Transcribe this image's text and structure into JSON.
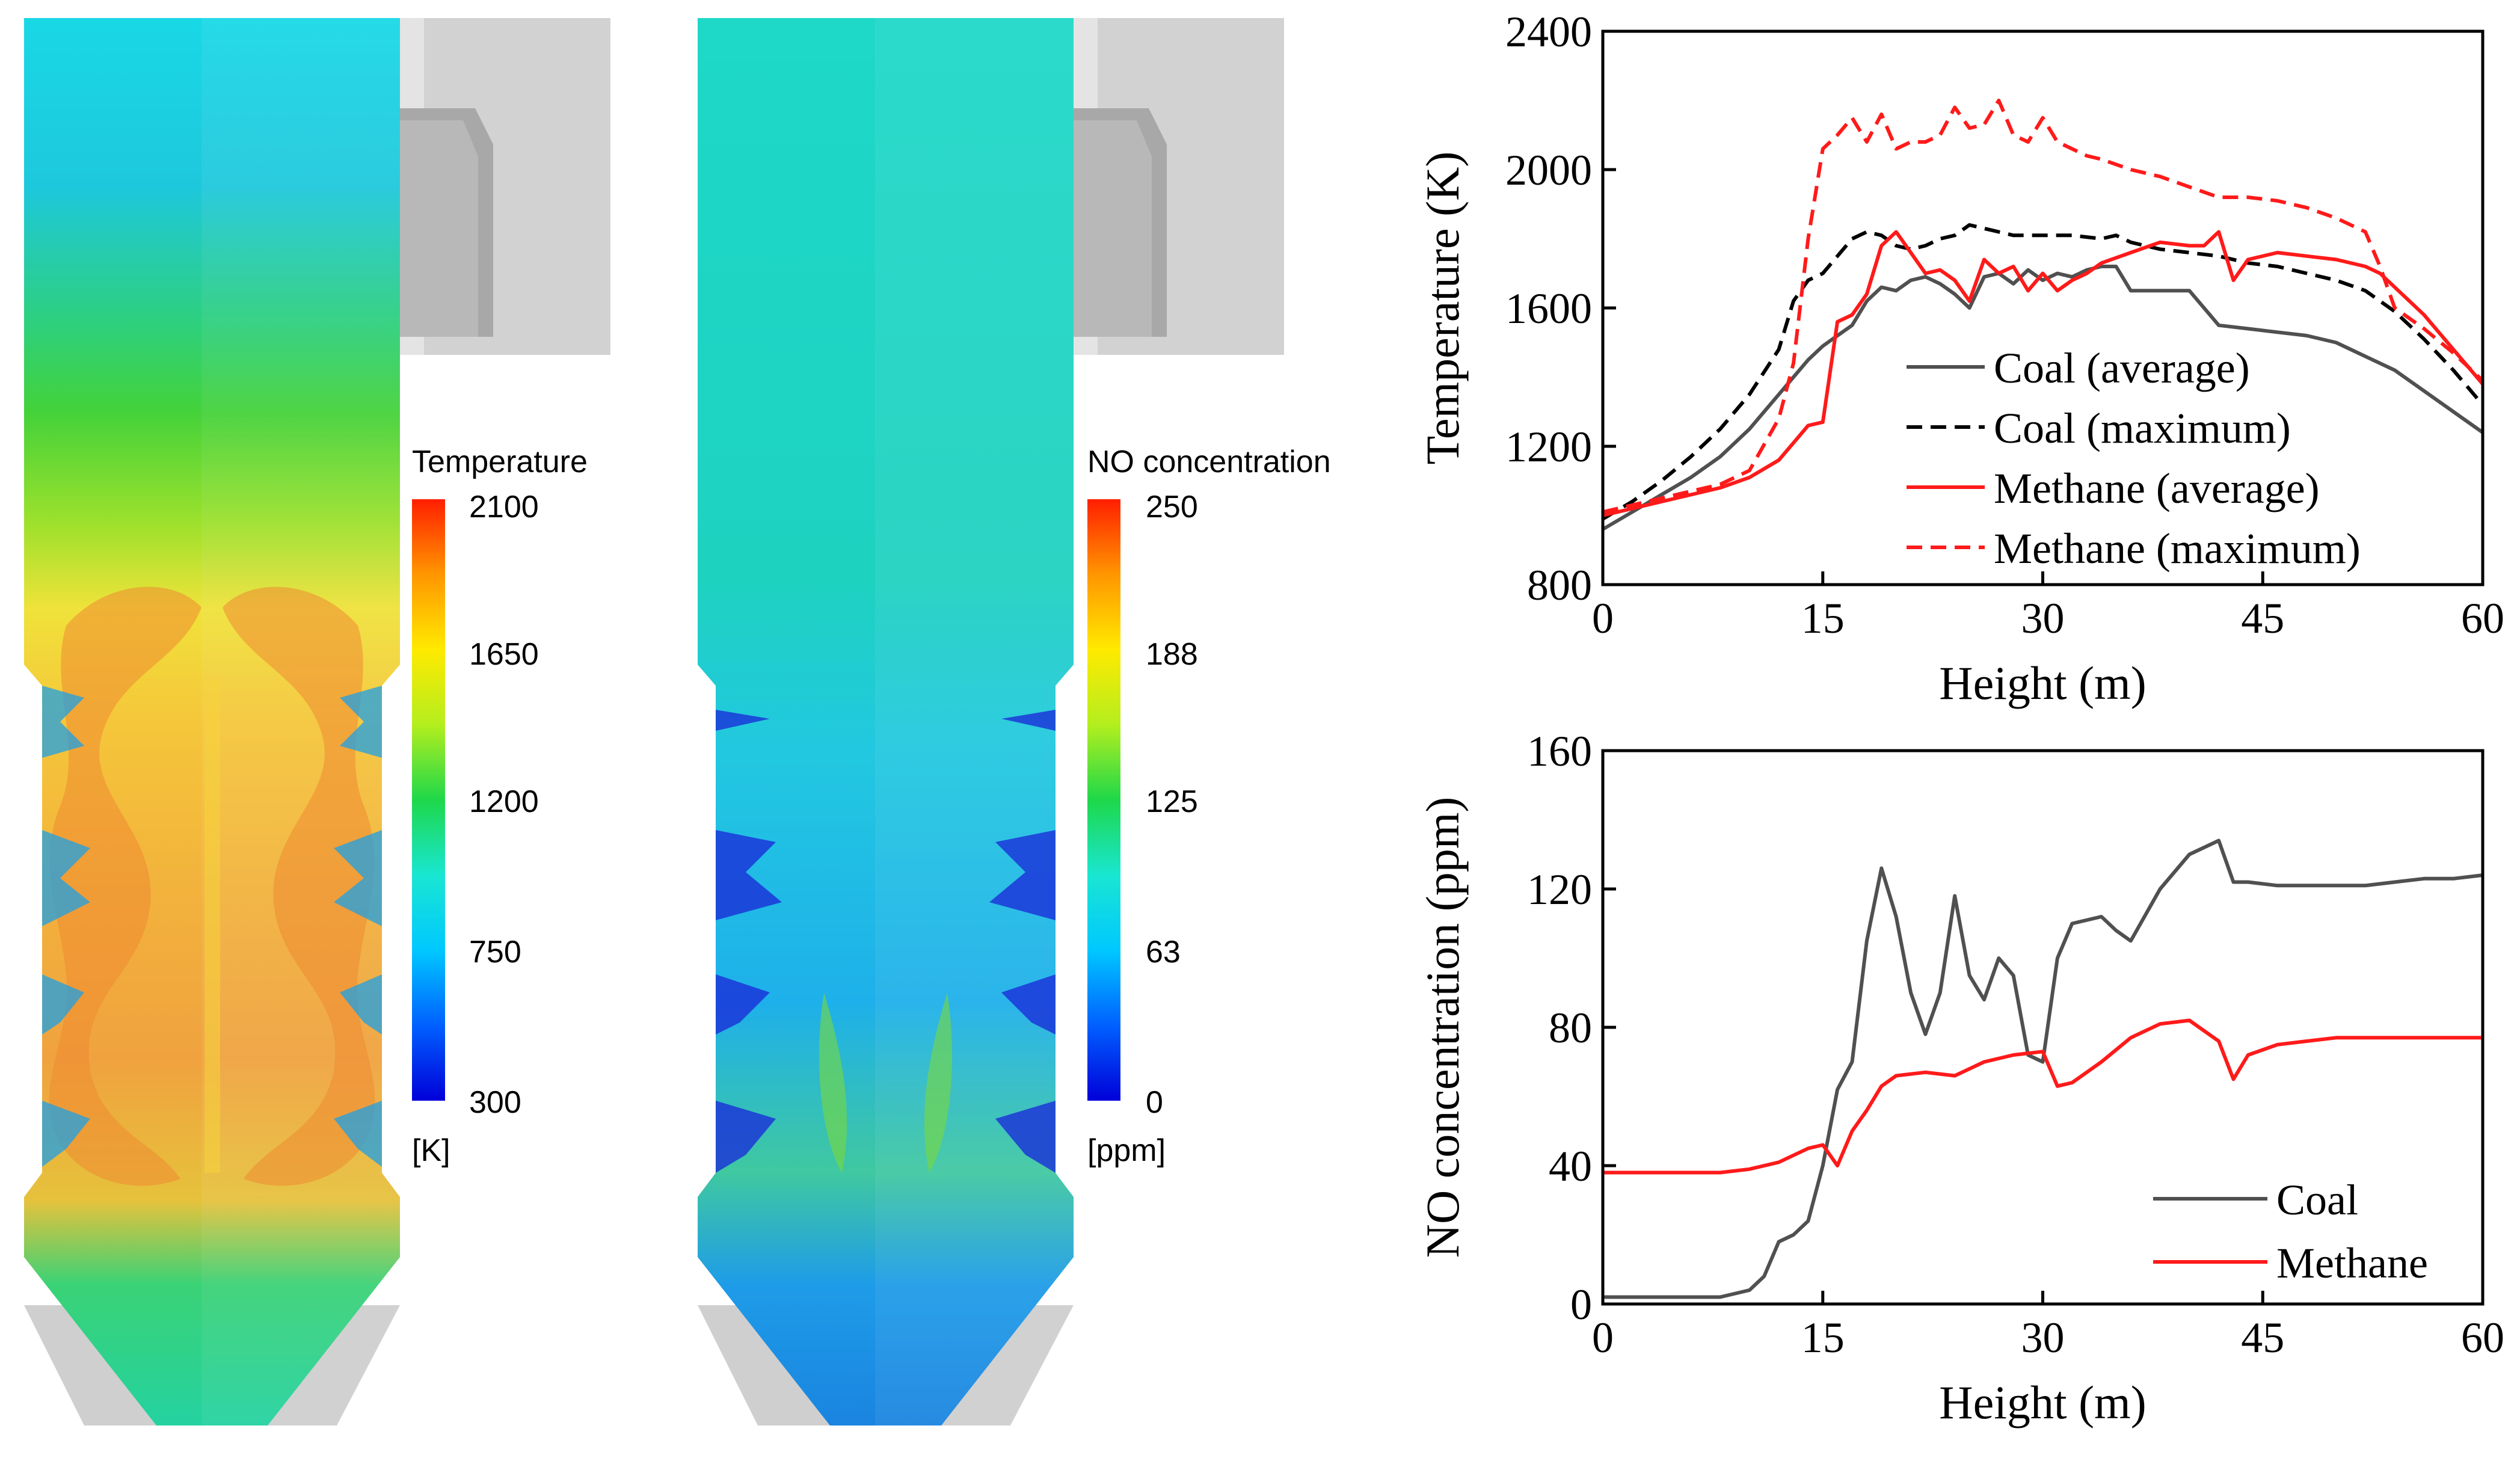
{
  "colors": {
    "coal": "#505050",
    "methane": "#ff1a1a",
    "axis": "#000000",
    "background": "#ffffff",
    "geometry_gray": "#d2d2d2",
    "jet_scale": [
      "#0000d9",
      "#0060ff",
      "#00c8ff",
      "#19e6d2",
      "#1ed84a",
      "#b4ee1e",
      "#ffea00",
      "#ff9600",
      "#ff1e00"
    ]
  },
  "contours": {
    "temperature": {
      "title": "Temperature",
      "unit": "[K]",
      "ticks": [
        "2100",
        "1650",
        "1200",
        "750",
        "300"
      ]
    },
    "no": {
      "title": "NO concentration",
      "unit": "[ppm]",
      "ticks": [
        "250",
        "188",
        "125",
        "63",
        "0"
      ]
    }
  },
  "chart_data": [
    {
      "type": "line",
      "title": "",
      "xlabel": "Height (m)",
      "ylabel": "Temperature (K)",
      "xlim": [
        0,
        60
      ],
      "ylim": [
        800,
        2400
      ],
      "xticks": [
        0,
        15,
        30,
        45,
        60
      ],
      "yticks": [
        800,
        1200,
        1600,
        2000,
        2400
      ],
      "legend_position": "center-right",
      "series": [
        {
          "name": "Coal (average)",
          "color": "#505050",
          "dash": "solid",
          "x": [
            0,
            2,
            4,
            6,
            8,
            10,
            12,
            13,
            14,
            15,
            16,
            17,
            18,
            19,
            20,
            21,
            22,
            23,
            24,
            25,
            26,
            27,
            28,
            29,
            30,
            31,
            32,
            33,
            34,
            35,
            36,
            37,
            38,
            40,
            42,
            44,
            46,
            48,
            50,
            52,
            54,
            56,
            58,
            60
          ],
          "y": [
            960,
            1010,
            1060,
            1110,
            1170,
            1250,
            1350,
            1400,
            1450,
            1490,
            1520,
            1550,
            1620,
            1660,
            1650,
            1680,
            1690,
            1670,
            1640,
            1600,
            1690,
            1700,
            1670,
            1710,
            1680,
            1700,
            1690,
            1710,
            1720,
            1720,
            1650,
            1650,
            1650,
            1650,
            1550,
            1540,
            1530,
            1520,
            1500,
            1460,
            1420,
            1360,
            1300,
            1240
          ]
        },
        {
          "name": "Coal (maximum)",
          "color": "#000000",
          "dash": "dashed",
          "x": [
            0,
            2,
            4,
            6,
            8,
            10,
            12,
            13,
            14,
            15,
            16,
            17,
            18,
            19,
            20,
            21,
            22,
            23,
            24,
            25,
            26,
            27,
            28,
            30,
            32,
            34,
            35,
            36,
            38,
            40,
            42,
            44,
            46,
            48,
            50,
            52,
            54,
            56,
            58,
            60
          ],
          "y": [
            990,
            1040,
            1100,
            1170,
            1250,
            1350,
            1480,
            1620,
            1680,
            1700,
            1750,
            1800,
            1820,
            1810,
            1780,
            1770,
            1780,
            1800,
            1810,
            1840,
            1830,
            1820,
            1810,
            1810,
            1810,
            1800,
            1810,
            1790,
            1770,
            1760,
            1750,
            1730,
            1720,
            1700,
            1680,
            1650,
            1590,
            1510,
            1420,
            1320
          ]
        },
        {
          "name": "Methane (average)",
          "color": "#ff1a1a",
          "dash": "solid",
          "x": [
            0,
            2,
            4,
            6,
            8,
            10,
            12,
            13,
            14,
            15,
            16,
            17,
            18,
            19,
            20,
            21,
            22,
            23,
            24,
            25,
            26,
            27,
            28,
            29,
            30,
            31,
            32,
            33,
            34,
            36,
            38,
            40,
            41,
            42,
            43,
            44,
            46,
            48,
            50,
            52,
            53,
            54,
            56,
            58,
            60
          ],
          "y": [
            1000,
            1020,
            1040,
            1060,
            1080,
            1110,
            1160,
            1210,
            1260,
            1270,
            1560,
            1580,
            1640,
            1780,
            1820,
            1760,
            1700,
            1710,
            1680,
            1620,
            1740,
            1700,
            1720,
            1650,
            1700,
            1650,
            1680,
            1700,
            1730,
            1760,
            1790,
            1780,
            1780,
            1820,
            1680,
            1740,
            1760,
            1750,
            1740,
            1720,
            1700,
            1660,
            1580,
            1480,
            1380
          ]
        },
        {
          "name": "Methane (maximum)",
          "color": "#ff1a1a",
          "dash": "dashed",
          "x": [
            0,
            2,
            4,
            6,
            8,
            10,
            12,
            13,
            14,
            15,
            16,
            17,
            18,
            19,
            20,
            21,
            22,
            23,
            24,
            25,
            26,
            27,
            28,
            29,
            30,
            31,
            32,
            33,
            34,
            36,
            38,
            40,
            42,
            44,
            46,
            48,
            50,
            52,
            53,
            54,
            56,
            58,
            60
          ],
          "y": [
            1010,
            1030,
            1050,
            1070,
            1090,
            1130,
            1280,
            1440,
            1800,
            2060,
            2100,
            2150,
            2080,
            2160,
            2060,
            2080,
            2080,
            2100,
            2180,
            2120,
            2130,
            2200,
            2100,
            2080,
            2150,
            2080,
            2060,
            2040,
            2030,
            2000,
            1980,
            1950,
            1920,
            1920,
            1910,
            1890,
            1860,
            1820,
            1720,
            1600,
            1540,
            1470,
            1390
          ]
        }
      ]
    },
    {
      "type": "line",
      "title": "",
      "xlabel": "Height (m)",
      "ylabel": "NO concentration (ppm)",
      "xlim": [
        0,
        60
      ],
      "ylim": [
        0,
        160
      ],
      "xticks": [
        0,
        15,
        30,
        45,
        60
      ],
      "yticks": [
        0,
        40,
        80,
        120,
        160
      ],
      "legend_position": "bottom-right",
      "series": [
        {
          "name": "Coal",
          "color": "#505050",
          "dash": "solid",
          "x": [
            0,
            4,
            8,
            10,
            11,
            12,
            13,
            14,
            15,
            16,
            17,
            18,
            19,
            20,
            21,
            22,
            23,
            24,
            25,
            26,
            27,
            28,
            29,
            30,
            31,
            32,
            34,
            35,
            36,
            38,
            40,
            42,
            43,
            44,
            46,
            48,
            50,
            52,
            54,
            56,
            58,
            60
          ],
          "y": [
            2,
            2,
            2,
            4,
            8,
            18,
            20,
            24,
            40,
            62,
            70,
            105,
            126,
            112,
            90,
            78,
            90,
            118,
            95,
            88,
            100,
            95,
            72,
            70,
            100,
            110,
            112,
            108,
            105,
            120,
            130,
            134,
            122,
            122,
            121,
            121,
            121,
            121,
            122,
            123,
            123,
            124
          ]
        },
        {
          "name": "Methane",
          "color": "#ff1a1a",
          "dash": "solid",
          "x": [
            0,
            4,
            8,
            10,
            12,
            14,
            15,
            16,
            17,
            18,
            19,
            20,
            22,
            24,
            26,
            28,
            30,
            31,
            32,
            34,
            36,
            38,
            40,
            42,
            43,
            44,
            46,
            48,
            50,
            52,
            54,
            56,
            58,
            60
          ],
          "y": [
            38,
            38,
            38,
            39,
            41,
            45,
            46,
            40,
            50,
            56,
            63,
            66,
            67,
            66,
            70,
            72,
            73,
            63,
            64,
            70,
            77,
            81,
            82,
            76,
            65,
            72,
            75,
            76,
            77,
            77,
            77,
            77,
            77,
            77
          ]
        }
      ]
    }
  ]
}
